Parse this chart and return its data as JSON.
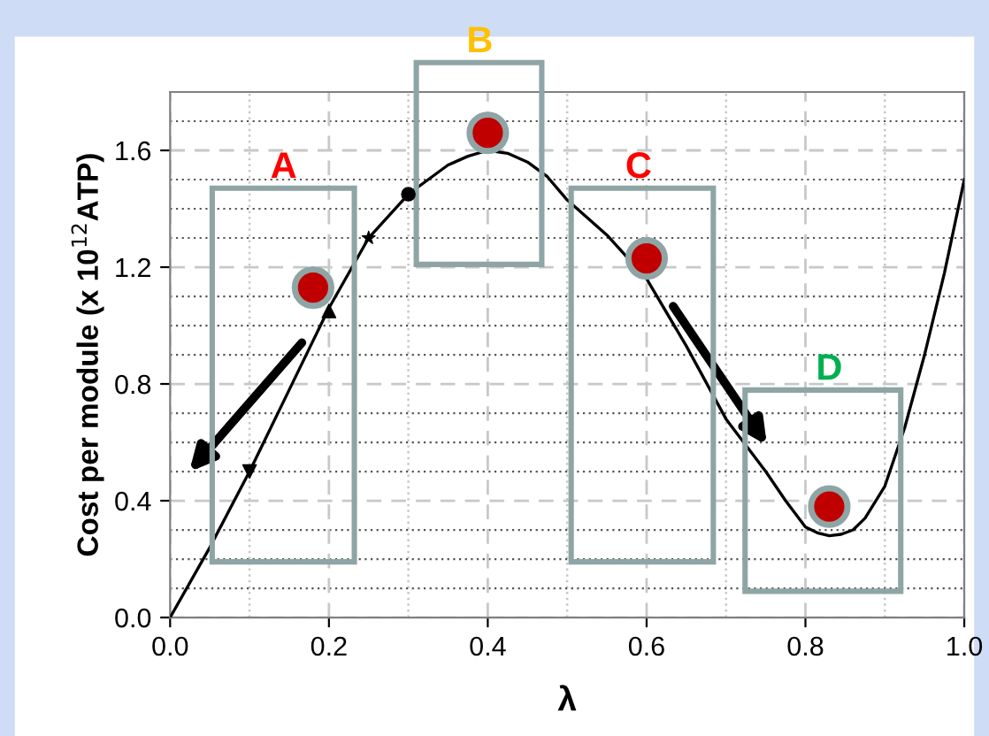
{
  "chart_data": {
    "type": "line",
    "xlabel": "λ",
    "ylabel": "Cost per module (x 10$^{12}$ATP)",
    "xlim": [
      0,
      1.0
    ],
    "ylim": [
      0,
      1.8
    ],
    "xticks": [
      {
        "value": 0,
        "label": "0.0"
      },
      0.2,
      0.4,
      0.6,
      0.8,
      {
        "value": 1.0,
        "label": "1.0"
      }
    ],
    "yticks": [
      {
        "value": 0,
        "label": "0.0"
      },
      0.4,
      0.8,
      1.2,
      1.6
    ],
    "grid": true,
    "marker": "none",
    "line_style": "solid",
    "series": [
      {
        "color": "#000000",
        "x": [
          0,
          0.05,
          0.1,
          0.15,
          0.2,
          0.25,
          0.3,
          0.35,
          0.375,
          0.4,
          0.425,
          0.45,
          0.475,
          0.5,
          0.55,
          0.6,
          0.65,
          0.7,
          0.75,
          0.775,
          0.8,
          0.815,
          0.83,
          0.845,
          0.86,
          0.875,
          0.9,
          0.925,
          0.95,
          0.975,
          1.0
        ],
        "values": [
          0,
          0.24,
          0.5,
          0.78,
          1.06,
          1.3,
          1.45,
          1.55,
          1.58,
          1.6,
          1.59,
          1.56,
          1.51,
          1.43,
          1.31,
          1.16,
          0.93,
          0.68,
          0.5,
          0.4,
          0.31,
          0.29,
          0.28,
          0.285,
          0.3,
          0.34,
          0.45,
          0.65,
          0.9,
          1.18,
          1.5
        ]
      },
      {
        "type": "scatter",
        "marker": "triangle_down",
        "color": "#000000",
        "x": [
          0.1
        ],
        "values": [
          0.5
        ]
      },
      {
        "type": "scatter",
        "marker": "triangle",
        "color": "#000000",
        "x": [
          0.2
        ],
        "values": [
          1.05
        ]
      },
      {
        "type": "scatter",
        "marker": "star",
        "color": "#000000",
        "x": [
          0.25
        ],
        "values": [
          1.3
        ]
      },
      {
        "type": "scatter",
        "marker": "circle",
        "color": "#000000",
        "x": [
          0.3
        ],
        "values": [
          1.45
        ]
      },
      {
        "type": "scatter",
        "marker": "circle",
        "color": "#c00000",
        "x": [
          0.18,
          0.4,
          0.6,
          0.83
        ],
        "values": [
          1.13,
          1.66,
          1.23,
          0.38
        ]
      }
    ],
    "annotations": [
      "A",
      "B",
      "C",
      "D"
    ]
  }
}
